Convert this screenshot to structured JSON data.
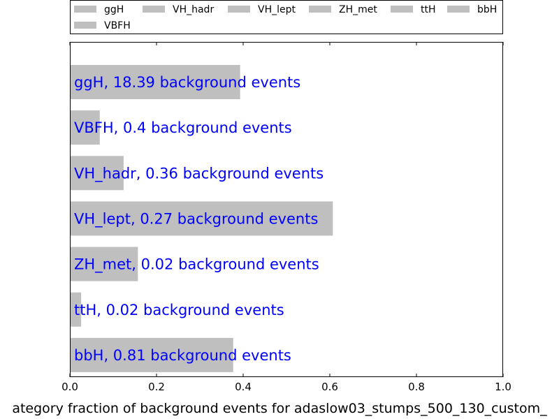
{
  "colors": {
    "bar": "#bfbfbf",
    "label": "#0000ff",
    "axis": "#000000"
  },
  "chart_data": {
    "type": "bar",
    "orientation": "horizontal",
    "xlabel": "ategory fraction of background events for adaslow03_stumps_500_130_custom_",
    "xlim": [
      0,
      1.0
    ],
    "xticks": [
      "0.0",
      "0.2",
      "0.4",
      "0.6",
      "0.8",
      "1.0"
    ],
    "grid": false,
    "legend": {
      "position": "top, above plot",
      "entries": [
        "ggH",
        "VH_hadr",
        "VH_lept",
        "ZH_met",
        "ttH",
        "bbH",
        "VBFH"
      ]
    },
    "categories": [
      "ggH",
      "VBFH",
      "VH_hadr",
      "VH_lept",
      "ZH_met",
      "ttH",
      "bbH"
    ],
    "values": [
      0.393,
      0.069,
      0.124,
      0.607,
      0.157,
      0.026,
      0.377
    ],
    "bar_labels": [
      "ggH, 18.39 background events",
      "VBFH, 0.4 background events",
      "VH_hadr, 0.36 background events",
      "VH_lept, 0.27 background events",
      "ZH_met, 0.02 background events",
      "ttH, 0.02 background events",
      "bbH, 0.81 background events"
    ]
  }
}
